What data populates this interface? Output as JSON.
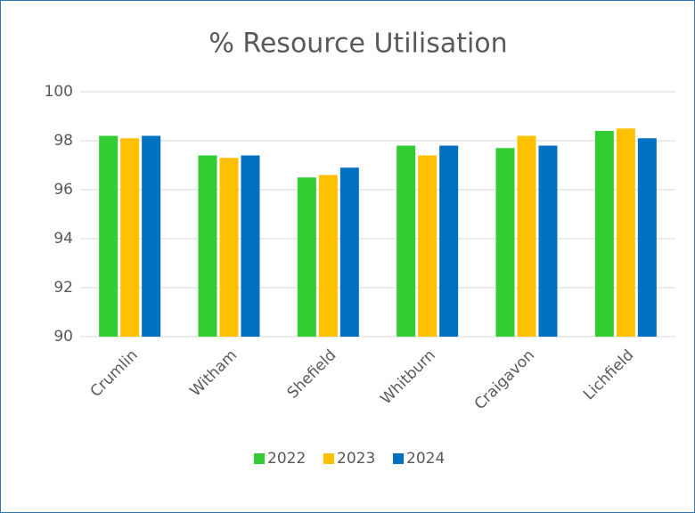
{
  "chart_data": {
    "type": "bar",
    "title": "% Resource Utilisation",
    "categories": [
      "Crumlin",
      "Witham",
      "Shefield",
      "Whitburn",
      "Craigavon",
      "Lichfield"
    ],
    "series": [
      {
        "name": "2022",
        "color": "#33cc33",
        "values": [
          98.2,
          97.4,
          96.5,
          97.8,
          97.7,
          98.4
        ]
      },
      {
        "name": "2023",
        "color": "#ffc000",
        "values": [
          98.1,
          97.3,
          96.6,
          97.4,
          98.2,
          98.5
        ]
      },
      {
        "name": "2024",
        "color": "#0070c0",
        "values": [
          98.2,
          97.4,
          96.9,
          97.8,
          97.8,
          98.1
        ]
      }
    ],
    "ylim": [
      90,
      100
    ],
    "yticks": [
      90,
      92,
      94,
      96,
      98,
      100
    ],
    "grid": true,
    "legend": "bottom"
  }
}
